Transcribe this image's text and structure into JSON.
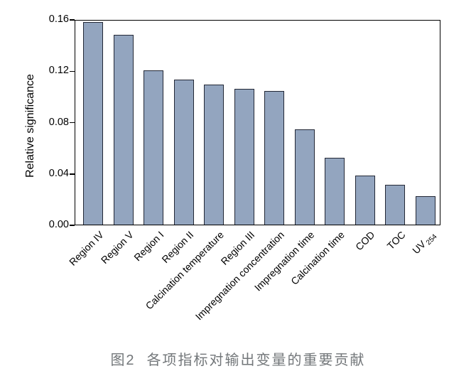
{
  "figure": {
    "caption": {
      "label": "图2",
      "text": "各项指标对输出变量的重要贡献"
    }
  },
  "chart_data": {
    "type": "bar",
    "title": "",
    "xlabel": "",
    "ylabel": "Relative significance",
    "ylim": [
      0,
      0.16
    ],
    "yticks": [
      0,
      0.04,
      0.08,
      0.12,
      0.16
    ],
    "ytick_labels": [
      "0.00",
      "0.04",
      "0.08",
      "0.12",
      "0.16"
    ],
    "grid": false,
    "legend": "none",
    "bar_fill_color": "#93a5bf",
    "bar_edge_color": "#232836",
    "axis_color": "#000000",
    "caption_color": "#73777a",
    "categories": [
      "Region IV",
      "Region V",
      "Region I",
      "Region II",
      "Calcination temperature",
      "Region III",
      "Impregnation concentration",
      "Impregnation time",
      "Calcination time",
      "COD",
      "TOC",
      {
        "text": "UV",
        "sub": "254"
      }
    ],
    "values": [
      0.158,
      0.148,
      0.12,
      0.113,
      0.109,
      0.106,
      0.104,
      0.074,
      0.052,
      0.038,
      0.031,
      0.022
    ]
  }
}
